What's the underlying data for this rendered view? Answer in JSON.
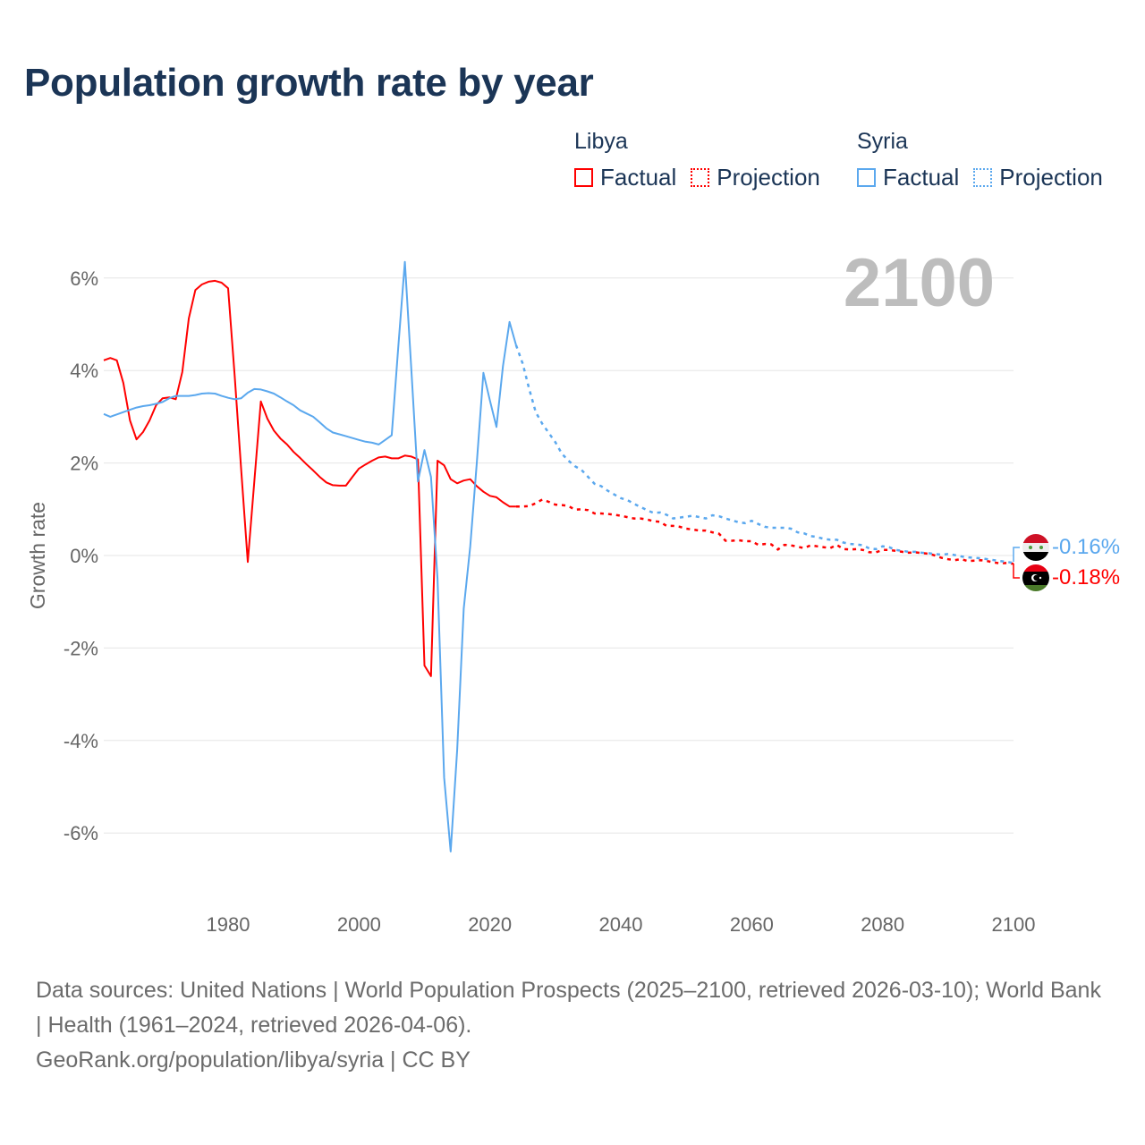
{
  "title": "Population growth rate by year",
  "legend": {
    "groups": [
      {
        "name": "Libya",
        "factual": "Factual",
        "projection": "Projection",
        "color": "#ff0000"
      },
      {
        "name": "Syria",
        "factual": "Factual",
        "projection": "Projection",
        "color": "#5ba8ee"
      }
    ]
  },
  "year_display": "2100",
  "end_labels": {
    "syria": "-0.16%",
    "libya": "-0.18%"
  },
  "flags": {
    "syria": "syria-flag-icon",
    "libya": "libya-flag-icon"
  },
  "footer": {
    "sources": "Data sources: United Nations | World Population Prospects (2025–2100, retrieved 2026-03-10); World Bank | Health (1961–2024, retrieved 2026-04-06).",
    "link": "GeoRank.org/population/libya/syria | CC BY"
  },
  "chart_data": {
    "type": "line",
    "title": "Population growth rate by year",
    "xlabel": "",
    "ylabel": "Growth rate",
    "xlim": [
      1961,
      2100
    ],
    "ylim": [
      -7.2,
      6.6
    ],
    "xticks": [
      1980,
      2000,
      2020,
      2040,
      2060,
      2080,
      2100
    ],
    "xtick_labels": [
      "1980",
      "2000",
      "2020",
      "2040",
      "2060",
      "2080",
      "2100"
    ],
    "yticks": [
      6,
      4,
      2,
      0,
      -2,
      -4,
      -6
    ],
    "ytick_labels": [
      "6%",
      "4%",
      "2%",
      "0%",
      "-2%",
      "-4%",
      "-6%"
    ],
    "grid": true,
    "legend_position": "top-right",
    "series": [
      {
        "name": "Libya",
        "color": "#ff0000",
        "factual_start": 1961,
        "factual": [
          4.22,
          4.27,
          4.22,
          3.73,
          2.92,
          2.51,
          2.67,
          2.92,
          3.25,
          3.4,
          3.42,
          3.38,
          3.97,
          5.13,
          5.74,
          5.86,
          5.92,
          5.94,
          5.9,
          5.78,
          3.9,
          1.86,
          -0.14,
          1.6,
          3.33,
          2.96,
          2.7,
          2.53,
          2.4,
          2.24,
          2.11,
          1.97,
          1.84,
          1.7,
          1.58,
          1.52,
          1.51,
          1.51,
          1.7,
          1.88,
          1.97,
          2.05,
          2.12,
          2.14,
          2.1,
          2.1,
          2.16,
          2.14,
          2.08,
          -2.38,
          -2.61,
          2.05,
          1.95,
          1.65,
          1.56,
          1.62,
          1.65,
          1.5,
          1.38,
          1.29,
          1.26,
          1.15,
          1.06,
          1.06
        ],
        "projection_start": 2025,
        "projection": [
          1.06,
          1.07,
          1.13,
          1.21,
          1.16,
          1.1,
          1.09,
          1.07,
          0.99,
          1.0,
          0.98,
          0.91,
          0.91,
          0.9,
          0.88,
          0.86,
          0.83,
          0.8,
          0.8,
          0.78,
          0.74,
          0.73,
          0.64,
          0.64,
          0.62,
          0.58,
          0.56,
          0.54,
          0.54,
          0.5,
          0.47,
          0.32,
          0.32,
          0.33,
          0.31,
          0.31,
          0.23,
          0.25,
          0.24,
          0.13,
          0.23,
          0.22,
          0.19,
          0.16,
          0.22,
          0.2,
          0.18,
          0.16,
          0.23,
          0.14,
          0.13,
          0.14,
          0.12,
          0.07,
          0.07,
          0.12,
          0.12,
          0.1,
          0.08,
          0.06,
          0.07,
          0.05,
          0.04,
          0.0,
          -0.05,
          -0.08,
          -0.1,
          -0.08,
          -0.12,
          -0.11,
          -0.1,
          -0.12,
          -0.15,
          -0.17,
          -0.16,
          -0.18
        ],
        "end_value": -0.18
      },
      {
        "name": "Syria",
        "color": "#5ba8ee",
        "factual_start": 1961,
        "factual": [
          3.06,
          3.0,
          3.05,
          3.1,
          3.15,
          3.2,
          3.23,
          3.25,
          3.28,
          3.32,
          3.4,
          3.45,
          3.45,
          3.45,
          3.47,
          3.5,
          3.51,
          3.5,
          3.45,
          3.41,
          3.38,
          3.4,
          3.52,
          3.6,
          3.59,
          3.55,
          3.5,
          3.42,
          3.33,
          3.25,
          3.14,
          3.07,
          3.0,
          2.88,
          2.75,
          2.66,
          2.62,
          2.58,
          2.54,
          2.5,
          2.46,
          2.44,
          2.4,
          2.5,
          2.6,
          4.5,
          6.35,
          4.0,
          1.6,
          2.28,
          1.7,
          -0.5,
          -4.8,
          -6.4,
          -4.2,
          -1.15,
          0.2,
          2.0,
          3.95,
          3.35,
          2.78,
          4.1,
          5.05,
          4.55
        ],
        "projection_start": 2025,
        "projection": [
          4.15,
          3.6,
          3.1,
          2.85,
          2.65,
          2.45,
          2.2,
          2.05,
          1.93,
          1.85,
          1.7,
          1.55,
          1.5,
          1.4,
          1.32,
          1.24,
          1.2,
          1.12,
          1.05,
          0.98,
          0.92,
          0.93,
          0.88,
          0.8,
          0.82,
          0.84,
          0.86,
          0.83,
          0.8,
          0.87,
          0.85,
          0.8,
          0.76,
          0.72,
          0.7,
          0.75,
          0.68,
          0.62,
          0.6,
          0.6,
          0.6,
          0.58,
          0.5,
          0.48,
          0.42,
          0.4,
          0.36,
          0.34,
          0.34,
          0.28,
          0.25,
          0.24,
          0.22,
          0.15,
          0.14,
          0.2,
          0.18,
          0.12,
          0.1,
          0.08,
          0.08,
          0.06,
          0.05,
          0.03,
          0.02,
          0.03,
          0.01,
          -0.02,
          -0.04,
          -0.05,
          -0.06,
          -0.08,
          -0.1,
          -0.12,
          -0.14,
          -0.16
        ],
        "end_value": -0.16
      }
    ]
  }
}
